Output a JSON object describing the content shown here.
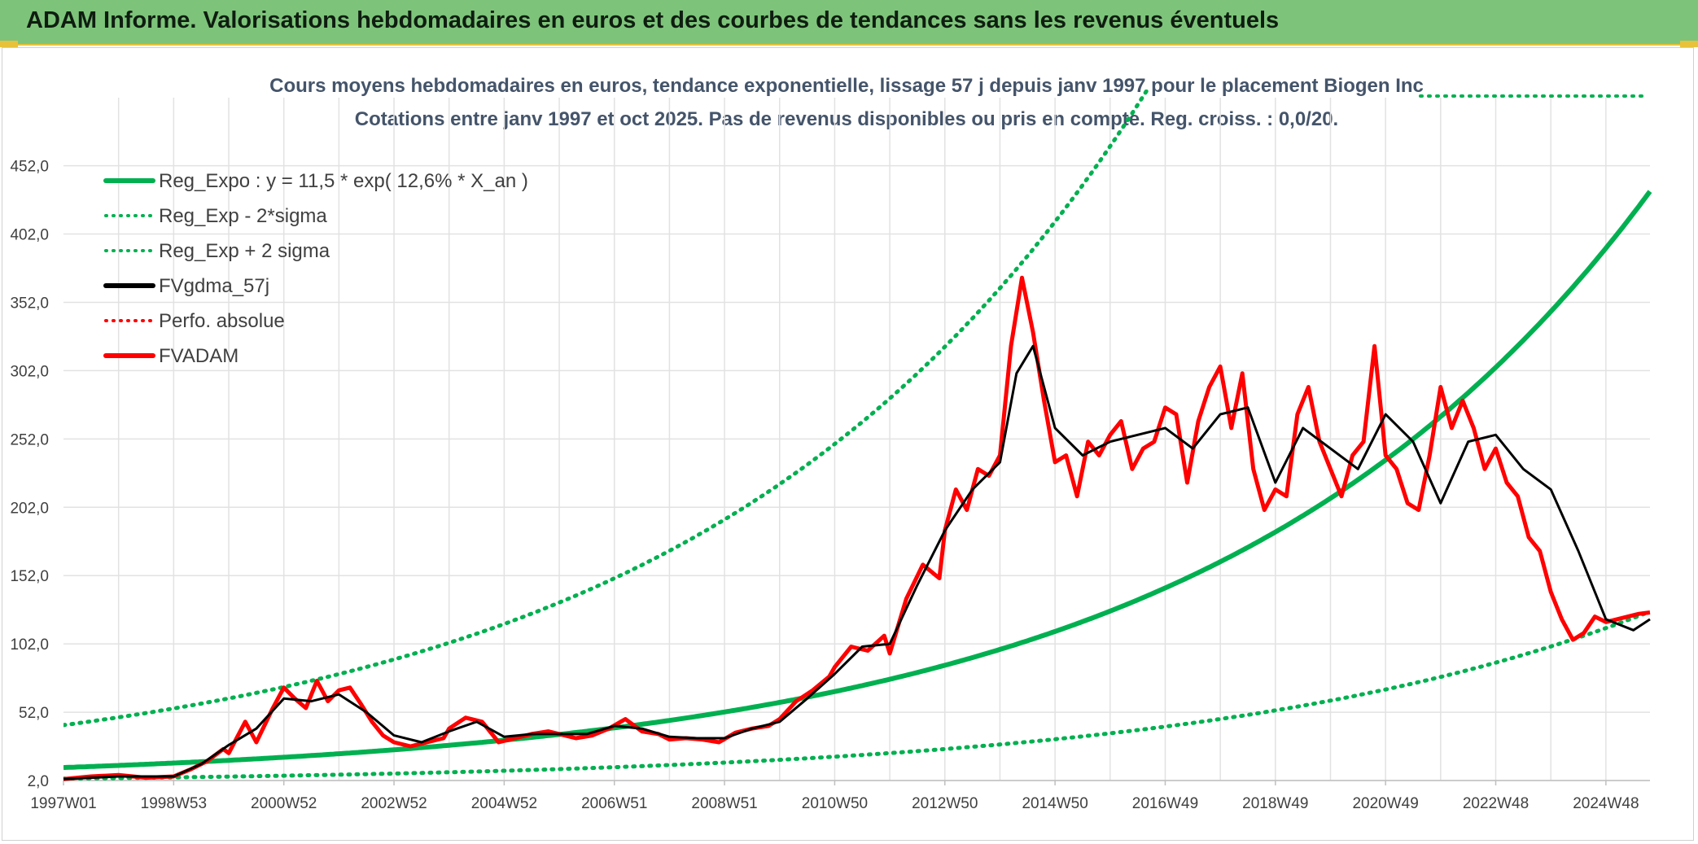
{
  "header": {
    "title": "ADAM Informe. Valorisations hebdomadaires en euros et des courbes de tendances sans les revenus éventuels"
  },
  "colors": {
    "header_bg": "#7dc47a",
    "accent": "#e8c23a",
    "reg_expo": "#00b050",
    "fvadam": "#ff0000",
    "fvgdma": "#000000"
  },
  "chart_data": {
    "type": "line",
    "title": "Cours moyens hebdomadaires en euros, tendance exponentielle, lissage 57 j depuis janv 1997 pour le placement Biogen Inc",
    "subtitle": "Cotations entre janv 1997 et oct 2025. Pas de revenus disponibles ou pris en compte. Reg. croiss. : 0,0/20.",
    "xlabel": "",
    "ylabel": "",
    "ylim": [
      2.0,
      472.0
    ],
    "yticks": [
      "2,0",
      "52,0",
      "102,0",
      "152,0",
      "202,0",
      "252,0",
      "302,0",
      "352,0",
      "402,0",
      "452,0"
    ],
    "ytick_values": [
      2,
      52,
      102,
      152,
      202,
      252,
      302,
      352,
      402,
      452
    ],
    "xlim": [
      1997.0,
      2025.8
    ],
    "xticks": [
      "1997W01",
      "1998W53",
      "2000W52",
      "2002W52",
      "2004W52",
      "2006W51",
      "2008W51",
      "2010W50",
      "2012W50",
      "2014W50",
      "2016W49",
      "2018W49",
      "2020W49",
      "2022W48",
      "2024W48"
    ],
    "xtick_values": [
      1997.0,
      1999.0,
      2001.0,
      2003.0,
      2005.0,
      2007.0,
      2009.0,
      2011.0,
      2013.0,
      2015.0,
      2017.0,
      2019.0,
      2021.0,
      2023.0,
      2025.0
    ],
    "grid": true,
    "legend_position": "top-left",
    "legend": [
      {
        "key": "reg_expo",
        "label": "Reg_Expo : y = 11,5 * exp( 12,6% *  X_an )",
        "style": "solid",
        "color": "#00b050"
      },
      {
        "key": "reg_minus",
        "label": "Reg_Exp - 2*sigma",
        "style": "dotted",
        "color": "#00b050"
      },
      {
        "key": "reg_plus",
        "label": "Reg_Exp + 2 sigma",
        "style": "dotted",
        "color": "#00b050"
      },
      {
        "key": "fvgdma",
        "label": "FVgdma_57j",
        "style": "solid",
        "color": "#000000"
      },
      {
        "key": "perfo",
        "label": "Perfo. absolue",
        "style": "dotted",
        "color": "#ff0000"
      },
      {
        "key": "fvadam",
        "label": "FVADAM",
        "style": "solid",
        "color": "#ff0000"
      }
    ],
    "regression": {
      "a": 11.5,
      "rate": 0.126,
      "upper_factor": 3.7,
      "lower_factor": 0.29
    },
    "series": [
      {
        "name": "FVADAM",
        "x": [
          1997.0,
          1997.5,
          1998.0,
          1998.5,
          1999.0,
          1999.3,
          1999.6,
          1999.9,
          2000.0,
          2000.3,
          2000.5,
          2000.8,
          2001.0,
          2001.2,
          2001.4,
          2001.6,
          2001.8,
          2002.0,
          2002.2,
          2002.4,
          2002.6,
          2002.8,
          2003.0,
          2003.3,
          2003.6,
          2003.9,
          2004.0,
          2004.3,
          2004.6,
          2004.9,
          2005.2,
          2005.5,
          2005.8,
          2006.0,
          2006.3,
          2006.6,
          2006.9,
          2007.2,
          2007.5,
          2007.8,
          2008.0,
          2008.3,
          2008.6,
          2008.9,
          2009.2,
          2009.5,
          2009.8,
          2010.0,
          2010.3,
          2010.6,
          2010.9,
          2011.0,
          2011.3,
          2011.6,
          2011.9,
          2012.0,
          2012.3,
          2012.6,
          2012.9,
          2013.0,
          2013.2,
          2013.4,
          2013.6,
          2013.8,
          2014.0,
          2014.2,
          2014.4,
          2014.6,
          2014.8,
          2015.0,
          2015.2,
          2015.4,
          2015.6,
          2015.8,
          2016.0,
          2016.2,
          2016.4,
          2016.6,
          2016.8,
          2017.0,
          2017.2,
          2017.4,
          2017.6,
          2017.8,
          2018.0,
          2018.2,
          2018.4,
          2018.6,
          2018.8,
          2019.0,
          2019.2,
          2019.4,
          2019.6,
          2019.8,
          2020.0,
          2020.2,
          2020.4,
          2020.6,
          2020.8,
          2021.0,
          2021.2,
          2021.4,
          2021.6,
          2021.8,
          2022.0,
          2022.2,
          2022.4,
          2022.6,
          2022.8,
          2023.0,
          2023.2,
          2023.4,
          2023.6,
          2023.8,
          2024.0,
          2024.2,
          2024.4,
          2024.6,
          2024.8,
          2025.0,
          2025.2,
          2025.4,
          2025.6,
          2025.8
        ],
        "y": [
          3,
          5,
          6,
          4,
          5,
          10,
          16,
          25,
          22,
          45,
          30,
          55,
          70,
          62,
          55,
          75,
          60,
          68,
          70,
          58,
          45,
          35,
          30,
          27,
          30,
          33,
          40,
          48,
          45,
          30,
          33,
          36,
          38,
          36,
          33,
          35,
          40,
          47,
          38,
          36,
          32,
          33,
          32,
          30,
          37,
          40,
          42,
          47,
          60,
          68,
          78,
          85,
          100,
          97,
          108,
          95,
          135,
          160,
          150,
          185,
          215,
          200,
          230,
          225,
          240,
          320,
          370,
          330,
          280,
          235,
          240,
          210,
          250,
          240,
          255,
          265,
          230,
          245,
          250,
          275,
          270,
          220,
          265,
          290,
          305,
          260,
          300,
          230,
          200,
          215,
          210,
          270,
          290,
          250,
          230,
          210,
          240,
          250,
          320,
          240,
          230,
          205,
          200,
          240,
          290,
          260,
          280,
          260,
          230,
          245,
          220,
          210,
          180,
          170,
          140,
          120,
          105,
          110,
          122,
          118,
          120,
          122,
          124,
          125
        ]
      },
      {
        "name": "FVgdma_57j",
        "x": [
          1997.0,
          1998.0,
          1999.0,
          1999.5,
          2000.0,
          2000.5,
          2001.0,
          2001.5,
          2002.0,
          2002.5,
          2003.0,
          2003.5,
          2004.0,
          2004.5,
          2005.0,
          2005.5,
          2006.0,
          2006.5,
          2007.0,
          2007.5,
          2008.0,
          2008.5,
          2009.0,
          2009.5,
          2010.0,
          2010.5,
          2011.0,
          2011.5,
          2012.0,
          2012.5,
          2013.0,
          2013.5,
          2014.0,
          2014.3,
          2014.6,
          2015.0,
          2015.5,
          2016.0,
          2016.5,
          2017.0,
          2017.5,
          2018.0,
          2018.5,
          2019.0,
          2019.5,
          2020.0,
          2020.5,
          2021.0,
          2021.5,
          2022.0,
          2022.5,
          2023.0,
          2023.5,
          2024.0,
          2024.5,
          2025.0,
          2025.5,
          2025.8
        ],
        "y": [
          3,
          5,
          5,
          14,
          28,
          40,
          62,
          60,
          65,
          52,
          35,
          30,
          38,
          45,
          34,
          36,
          36,
          36,
          42,
          40,
          34,
          33,
          33,
          40,
          45,
          62,
          80,
          100,
          102,
          145,
          185,
          215,
          235,
          300,
          320,
          260,
          240,
          250,
          255,
          260,
          245,
          270,
          275,
          220,
          260,
          245,
          230,
          270,
          250,
          205,
          250,
          255,
          230,
          215,
          170,
          120,
          112,
          120
        ]
      }
    ]
  }
}
